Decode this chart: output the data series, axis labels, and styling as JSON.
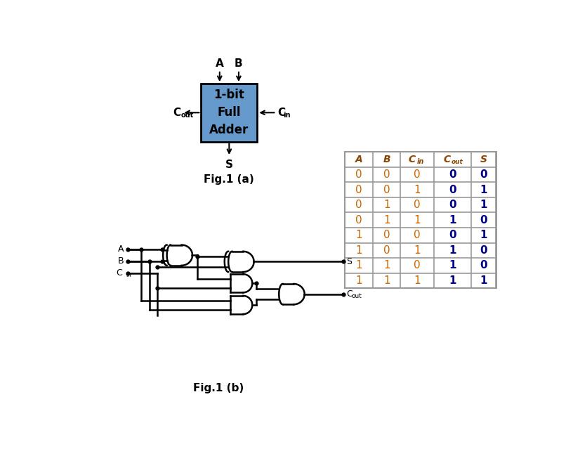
{
  "bg_color": "#ffffff",
  "box_color": "#6699cc",
  "box_edge_color": "#000000",
  "box_text": "1-bit\nFull\nAdder",
  "fig1a_label": "Fig.1 (a)",
  "fig1b_label": "Fig.1 (b)",
  "table_data": [
    [
      0,
      0,
      0,
      0,
      0
    ],
    [
      0,
      0,
      1,
      0,
      1
    ],
    [
      0,
      1,
      0,
      0,
      1
    ],
    [
      0,
      1,
      1,
      1,
      0
    ],
    [
      1,
      0,
      0,
      0,
      1
    ],
    [
      1,
      0,
      1,
      1,
      0
    ],
    [
      1,
      1,
      0,
      1,
      0
    ],
    [
      1,
      1,
      1,
      1,
      1
    ]
  ],
  "header_color": "#8B4400",
  "abc_color": "#cc6600",
  "cout_s_color": "#00008B",
  "line_color": "#000000"
}
